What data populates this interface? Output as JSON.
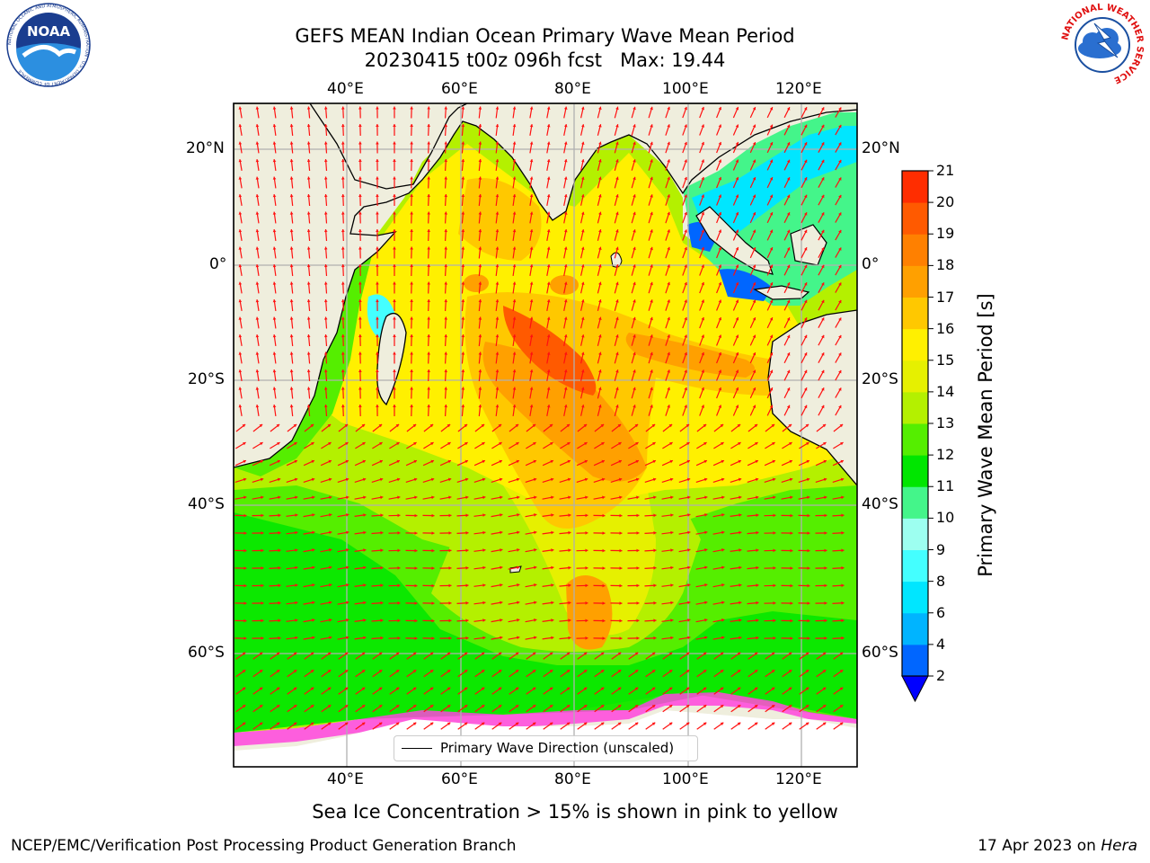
{
  "header": {
    "title_line1": "GEFS MEAN Indian Ocean Primary Wave Mean Period",
    "title_line2": "20230415 t00z 096h fcst   Max: 19.44"
  },
  "logos": {
    "left": {
      "text": "NOAA",
      "ring_text": "NATIONAL OCEANIC AND ATMOSPHERIC ADMINISTRATION · U.S. DEPARTMENT OF COMMERCE"
    },
    "right": {
      "ring_text": "NATIONAL WEATHER SERVICE"
    }
  },
  "axes": {
    "lon_ticks": [
      "40°E",
      "60°E",
      "80°E",
      "100°E",
      "120°E"
    ],
    "lat_ticks": [
      "20°N",
      "0°",
      "20°S",
      "40°S",
      "60°S"
    ]
  },
  "legend": {
    "label": "Primary Wave Direction (unscaled)"
  },
  "colorbar": {
    "label": "Primary Wave Mean Period [s]",
    "ticks": [
      "2",
      "4",
      "6",
      "8",
      "9",
      "10",
      "11",
      "12",
      "13",
      "14",
      "15",
      "16",
      "17",
      "18",
      "19",
      "20",
      "21"
    ],
    "colors": [
      "#0066ff",
      "#00b4ff",
      "#00e6ff",
      "#44ffff",
      "#9dfff0",
      "#44f58a",
      "#00e600",
      "#55ee00",
      "#b4f000",
      "#e6f000",
      "#fff000",
      "#ffc800",
      "#ffa000",
      "#ff8000",
      "#ff5a00",
      "#ff2d00"
    ],
    "under_color": "#0000ff"
  },
  "note": "Sea Ice Concentration > 15% is shown in pink to yellow",
  "footer": {
    "left": "NCEP/EMC/Verification Post Processing Product Generation Branch",
    "right_prefix": "17 Apr 2023 on ",
    "right_italic": "Hera"
  }
}
